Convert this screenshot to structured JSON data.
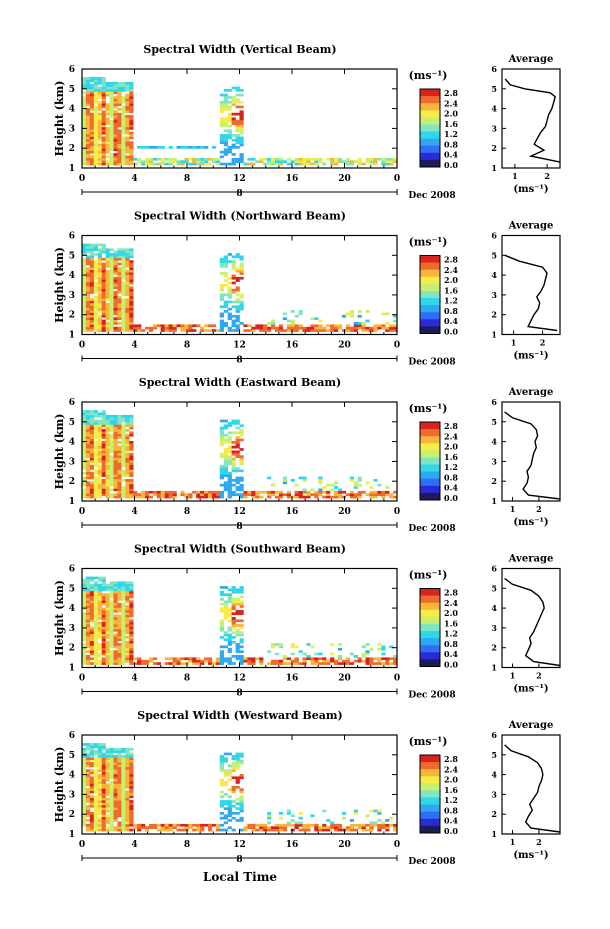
{
  "colors": {
    "colorbar": [
      "#1c1c5a",
      "#2a2ad6",
      "#2f6ff5",
      "#2fa8f0",
      "#30d6ea",
      "#7fe6c0",
      "#c8f070",
      "#f5ec4a",
      "#f7b53a",
      "#ef6a2c",
      "#d8231e"
    ],
    "profile_line": "#000000"
  },
  "shared": {
    "date_label": "Dec 2008",
    "day_marker": "8",
    "x_axis_title": "Local Time",
    "y_axis_title": "Height (km)",
    "avg_title": "Average",
    "unit_label": "(ms⁻¹)",
    "colorbar_ticks": [
      "2.8",
      "2.4",
      "2.0",
      "1.6",
      "1.2",
      "0.8",
      "0.4",
      "0.0"
    ]
  },
  "chart_data": [
    {
      "type": "heatmap",
      "title": "Spectral Width (Vertical Beam)",
      "x_ticks": [
        "0",
        "4",
        "8",
        "12",
        "16",
        "20",
        "0"
      ],
      "y_ticks": [
        "1",
        "2",
        "3",
        "4",
        "5",
        "6"
      ],
      "xlim": [
        0,
        24
      ],
      "ylim": [
        1,
        6
      ],
      "colorbar_range": [
        0,
        2.8
      ],
      "average_profile": {
        "xlim": [
          0.6,
          2.4
        ],
        "x_ticks": [
          1,
          2
        ],
        "heights": [
          1.3,
          1.6,
          1.9,
          2.2,
          2.5,
          2.8,
          3.1,
          3.4,
          3.7,
          4.0,
          4.3,
          4.6,
          4.8,
          5.0,
          5.2,
          5.5
        ],
        "values": [
          2.4,
          1.5,
          1.9,
          1.6,
          1.7,
          1.8,
          1.95,
          2.0,
          2.05,
          2.15,
          2.2,
          2.25,
          2.1,
          1.3,
          0.85,
          0.7
        ]
      }
    },
    {
      "type": "heatmap",
      "title": "Spectral Width (Northward Beam)",
      "x_ticks": [
        "0",
        "4",
        "8",
        "12",
        "16",
        "20",
        "0"
      ],
      "y_ticks": [
        "1",
        "2",
        "3",
        "4",
        "5",
        "6"
      ],
      "xlim": [
        0,
        24
      ],
      "ylim": [
        1,
        6
      ],
      "colorbar_range": [
        0,
        2.8
      ],
      "average_profile": {
        "xlim": [
          0.6,
          2.6
        ],
        "x_ticks": [
          1,
          2
        ],
        "heights": [
          1.2,
          1.4,
          1.7,
          2.0,
          2.3,
          2.6,
          2.9,
          3.2,
          3.5,
          3.8,
          4.1,
          4.4,
          4.7,
          5.0
        ],
        "values": [
          2.5,
          1.5,
          1.6,
          1.7,
          1.85,
          1.9,
          1.8,
          1.95,
          2.05,
          2.1,
          2.15,
          2.0,
          1.2,
          0.7
        ]
      }
    },
    {
      "type": "heatmap",
      "title": "Spectral Width (Eastward Beam)",
      "x_ticks": [
        "0",
        "4",
        "8",
        "12",
        "16",
        "20",
        "0"
      ],
      "y_ticks": [
        "1",
        "2",
        "3",
        "4",
        "5",
        "6"
      ],
      "xlim": [
        0,
        24
      ],
      "ylim": [
        1,
        6
      ],
      "colorbar_range": [
        0,
        2.8
      ],
      "average_profile": {
        "xlim": [
          0.6,
          2.8
        ],
        "x_ticks": [
          1,
          2
        ],
        "heights": [
          1.1,
          1.3,
          1.6,
          1.9,
          2.2,
          2.5,
          2.8,
          3.1,
          3.4,
          3.7,
          4.0,
          4.3,
          4.6,
          4.9,
          5.2,
          5.5
        ],
        "values": [
          2.8,
          1.6,
          1.4,
          1.55,
          1.6,
          1.55,
          1.7,
          1.75,
          1.8,
          1.9,
          1.85,
          1.95,
          1.9,
          1.7,
          1.0,
          0.7
        ]
      }
    },
    {
      "type": "heatmap",
      "title": "Spectral Width (Southward Beam)",
      "x_ticks": [
        "0",
        "4",
        "8",
        "12",
        "16",
        "20",
        "0"
      ],
      "y_ticks": [
        "1",
        "2",
        "3",
        "4",
        "5",
        "6"
      ],
      "xlim": [
        0,
        24
      ],
      "ylim": [
        1,
        6
      ],
      "colorbar_range": [
        0,
        2.8
      ],
      "average_profile": {
        "xlim": [
          0.6,
          2.8
        ],
        "x_ticks": [
          1,
          2
        ],
        "heights": [
          1.1,
          1.3,
          1.6,
          1.9,
          2.2,
          2.5,
          2.8,
          3.1,
          3.4,
          3.7,
          4.0,
          4.3,
          4.6,
          4.9,
          5.2,
          5.5
        ],
        "values": [
          2.8,
          1.8,
          1.5,
          1.6,
          1.7,
          1.65,
          1.8,
          1.9,
          2.0,
          2.1,
          2.2,
          2.15,
          2.0,
          1.7,
          1.0,
          0.7
        ]
      }
    },
    {
      "type": "heatmap",
      "title": "Spectral Width (Westward Beam)",
      "x_ticks": [
        "0",
        "4",
        "8",
        "12",
        "16",
        "20",
        "0"
      ],
      "y_ticks": [
        "1",
        "2",
        "3",
        "4",
        "5",
        "6"
      ],
      "xlim": [
        0,
        24
      ],
      "ylim": [
        1,
        6
      ],
      "colorbar_range": [
        0,
        2.8
      ],
      "average_profile": {
        "xlim": [
          0.6,
          2.8
        ],
        "x_ticks": [
          1,
          2
        ],
        "heights": [
          1.1,
          1.3,
          1.6,
          1.9,
          2.2,
          2.5,
          2.8,
          3.1,
          3.4,
          3.7,
          4.0,
          4.3,
          4.6,
          4.9,
          5.2,
          5.5
        ],
        "values": [
          2.8,
          1.7,
          1.5,
          1.6,
          1.75,
          1.65,
          1.8,
          1.95,
          2.0,
          2.1,
          2.15,
          2.1,
          1.95,
          1.6,
          0.95,
          0.7
        ]
      }
    }
  ]
}
